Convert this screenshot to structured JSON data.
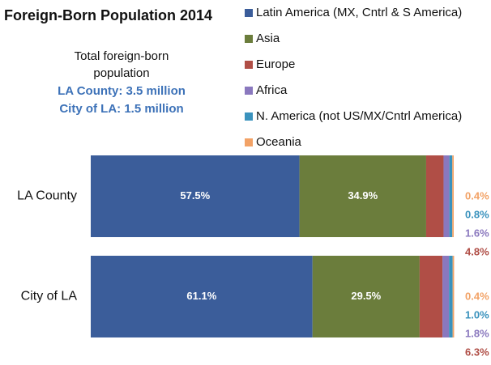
{
  "chart_data": {
    "type": "stacked-bar-horizontal",
    "title": "Foreign-Born Population 2014",
    "subtitle": [
      "Total foreign-born",
      "population",
      "LA County: 3.5 million",
      "City of LA: 1.5 million"
    ],
    "categories": [
      "LA County",
      "City of LA"
    ],
    "xlim": [
      0,
      100
    ],
    "series": [
      {
        "name": "Latin America (MX, Cntrl & S America)",
        "color": "#3b5d9a",
        "values": [
          57.5,
          61.1
        ],
        "value_labels": [
          "57.5%",
          "61.1%"
        ]
      },
      {
        "name": "Asia",
        "color": "#6b7d3c",
        "values": [
          34.9,
          29.5
        ],
        "value_labels": [
          "34.9%",
          "29.5%"
        ]
      },
      {
        "name": "Europe",
        "color": "#b04e46",
        "values": [
          4.8,
          6.3
        ],
        "value_labels": [
          "4.8%",
          "6.3%"
        ]
      },
      {
        "name": "Africa",
        "color": "#8a78be",
        "values": [
          1.6,
          1.8
        ],
        "value_labels": [
          "1.6%",
          "1.8%"
        ]
      },
      {
        "name": "N. America (not US/MX/Cntrl America)",
        "color": "#3a92bd",
        "values": [
          0.8,
          1.0
        ],
        "value_labels": [
          "0.8%",
          "1.0%"
        ]
      },
      {
        "name": "Oceania",
        "color": "#f2a266",
        "values": [
          0.4,
          0.4
        ],
        "value_labels": [
          "0.4%",
          "0.4%"
        ]
      }
    ]
  }
}
